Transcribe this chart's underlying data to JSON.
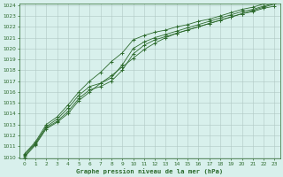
{
  "xlabel": "Graphe pression niveau de la mer (hPa)",
  "ylim": [
    1010,
    1024
  ],
  "xlim": [
    -0.5,
    23.5
  ],
  "yticks": [
    1010,
    1011,
    1012,
    1013,
    1014,
    1015,
    1016,
    1017,
    1018,
    1019,
    1020,
    1021,
    1022,
    1023,
    1024
  ],
  "xticks": [
    0,
    1,
    2,
    3,
    4,
    5,
    6,
    7,
    8,
    9,
    10,
    11,
    12,
    13,
    14,
    15,
    16,
    17,
    18,
    19,
    20,
    21,
    22,
    23
  ],
  "bg_color": "#d8f0ec",
  "grid_color": "#b0c8c4",
  "line_color": "#2d6a2d",
  "line1": [
    1010.0,
    1011.1,
    1012.6,
    1013.2,
    1014.0,
    1015.2,
    1016.0,
    1016.8,
    1017.5,
    1018.3,
    1019.1,
    1019.9,
    1020.5,
    1021.0,
    1021.4,
    1021.7,
    1022.0,
    1022.3,
    1022.6,
    1022.9,
    1023.2,
    1023.4,
    1023.7,
    1023.9
  ],
  "line2": [
    1010.1,
    1011.2,
    1012.7,
    1013.3,
    1014.2,
    1015.4,
    1016.2,
    1016.5,
    1017.0,
    1018.0,
    1019.5,
    1020.3,
    1020.8,
    1021.1,
    1021.4,
    1021.7,
    1022.0,
    1022.3,
    1022.6,
    1022.9,
    1023.2,
    1023.5,
    1023.8,
    1024.1
  ],
  "line3": [
    1010.2,
    1011.3,
    1012.8,
    1013.5,
    1014.5,
    1015.7,
    1016.5,
    1016.8,
    1017.3,
    1018.5,
    1020.0,
    1020.6,
    1021.0,
    1021.3,
    1021.6,
    1021.9,
    1022.2,
    1022.5,
    1022.8,
    1023.1,
    1023.4,
    1023.6,
    1023.9,
    1024.2
  ],
  "line4": [
    1010.3,
    1011.4,
    1013.0,
    1013.7,
    1014.8,
    1016.0,
    1017.0,
    1017.8,
    1018.8,
    1019.6,
    1020.8,
    1021.2,
    1021.5,
    1021.7,
    1022.0,
    1022.2,
    1022.5,
    1022.7,
    1023.0,
    1023.3,
    1023.6,
    1023.8,
    1024.1,
    1024.5
  ]
}
